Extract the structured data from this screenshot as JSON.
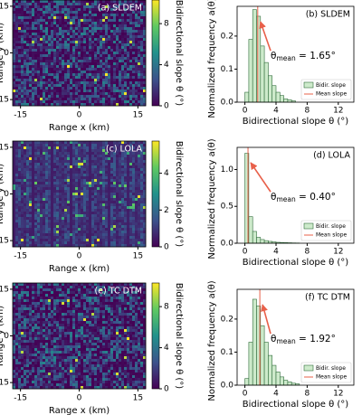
{
  "chart_data": [
    {
      "type": "heatmap",
      "title": "(a) SLDEM",
      "xlabel": "Range x (km)",
      "ylabel": "Range y (km)",
      "xlim": [
        -17,
        17
      ],
      "ylim": [
        -17,
        17
      ],
      "xticks": [
        -15,
        0,
        15
      ],
      "yticks": [
        -15,
        0,
        15
      ],
      "colormap": "viridis",
      "clim": [
        0,
        10.3
      ],
      "cticks": [
        0,
        4,
        8
      ],
      "clabel": "Bidirectional slope θ (°)"
    },
    {
      "type": "histogram",
      "title": "(b) SLDEM",
      "xlabel": "Bidirectional slope θ (°)",
      "ylabel": "Normalized frequency a(θ)",
      "xlim": [
        -1,
        14
      ],
      "ylim": [
        0,
        0.29
      ],
      "xticks": [
        0,
        4,
        8,
        12
      ],
      "yticks": [
        {
          "value": 0,
          "label": "0.0"
        },
        {
          "value": 0.1,
          "label": "0.1"
        },
        {
          "value": 0.2,
          "label": "0.2"
        }
      ],
      "bins": [
        0,
        0.5,
        1,
        1.5,
        2,
        2.5,
        3,
        3.5,
        4,
        4.5,
        5,
        5.5,
        6,
        6.5
      ],
      "series": [
        {
          "name": "Bidir. slope",
          "color": "#cdeacb",
          "edgecolor": "#2f6b3a",
          "values": [
            0.03,
            0.19,
            0.28,
            0.26,
            0.17,
            0.12,
            0.08,
            0.05,
            0.03,
            0.02,
            0.01,
            0.007,
            0.004
          ]
        }
      ],
      "mean_line": {
        "name": "Mean slope",
        "value": 1.65,
        "color": "#e8604a"
      },
      "annotation": [
        "θ",
        "mean",
        " = 1.65°"
      ],
      "legend": "lower right"
    },
    {
      "type": "heatmap",
      "title": "(c) LOLA",
      "xlabel": "Range x (km)",
      "ylabel": "Range y (km)",
      "xlim": [
        -17,
        17
      ],
      "ylim": [
        -17,
        17
      ],
      "xticks": [
        -15,
        0,
        15
      ],
      "yticks": [
        -15,
        0,
        15
      ],
      "colormap": "viridis",
      "clim": [
        0,
        5.75
      ],
      "cticks": [
        0,
        2,
        4
      ],
      "clabel": "Bidirectional slope θ (°)"
    },
    {
      "type": "histogram",
      "title": "(d) LOLA",
      "xlabel": "Bidirectional slope θ (°)",
      "ylabel": "Normalized frequency a(θ)",
      "xlim": [
        -1,
        14
      ],
      "ylim": [
        0,
        1.3
      ],
      "xticks": [
        0,
        4,
        8,
        12
      ],
      "yticks": [
        {
          "value": 0,
          "label": "0.0"
        },
        0.5,
        {
          "value": 1,
          "label": "1.0"
        }
      ],
      "bins": [
        0,
        0.5,
        1,
        1.5,
        2,
        2.5,
        3,
        3.5,
        4,
        4.5,
        5,
        5.5,
        6,
        6.5,
        7
      ],
      "series": [
        {
          "name": "Bidir. slope",
          "color": "#cdeacb",
          "edgecolor": "#2f6b3a",
          "values": [
            1.22,
            0.36,
            0.16,
            0.08,
            0.05,
            0.035,
            0.025,
            0.018,
            0.012,
            0.01,
            0.008,
            0.006,
            0.004,
            0.003
          ]
        }
      ],
      "mean_line": {
        "name": "Mean slope",
        "value": 0.4,
        "color": "#e8604a"
      },
      "annotation": [
        "θ",
        "mean",
        " = 0.40°"
      ],
      "legend": "lower right"
    },
    {
      "type": "heatmap",
      "title": "(e) TC DTM",
      "xlabel": "Range x (km)",
      "ylabel": "Range y (km)",
      "xlim": [
        -17,
        17
      ],
      "ylim": [
        -17,
        17
      ],
      "xticks": [
        -15,
        0,
        15
      ],
      "yticks": [
        -15,
        0,
        15
      ],
      "colormap": "viridis",
      "clim": [
        0,
        10.3
      ],
      "cticks": [
        0,
        4,
        8
      ],
      "clabel": "Bidirectional slope θ (°)"
    },
    {
      "type": "histogram",
      "title": "(f) TC DTM",
      "xlabel": "Bidirectional slope θ (°)",
      "ylabel": "Normalized frequency a(θ)",
      "xlim": [
        -1,
        14
      ],
      "ylim": [
        0,
        0.29
      ],
      "xticks": [
        0,
        4,
        8,
        12
      ],
      "yticks": [
        {
          "value": 0,
          "label": "0.0"
        },
        {
          "value": 0.1,
          "label": "0.1"
        },
        {
          "value": 0.2,
          "label": "0.2"
        }
      ],
      "bins": [
        0,
        0.5,
        1,
        1.5,
        2,
        2.5,
        3,
        3.5,
        4,
        4.5,
        5,
        5.5,
        6,
        6.5,
        7
      ],
      "series": [
        {
          "name": "Bidir. slope",
          "color": "#cdeacb",
          "edgecolor": "#2f6b3a",
          "values": [
            0.02,
            0.13,
            0.26,
            0.24,
            0.18,
            0.13,
            0.09,
            0.06,
            0.04,
            0.025,
            0.015,
            0.01,
            0.006,
            0.004
          ]
        }
      ],
      "mean_line": {
        "name": "Mean slope",
        "value": 1.92,
        "color": "#e8604a"
      },
      "annotation": [
        "θ",
        "mean",
        " = 1.92°"
      ],
      "legend": "lower right"
    }
  ]
}
